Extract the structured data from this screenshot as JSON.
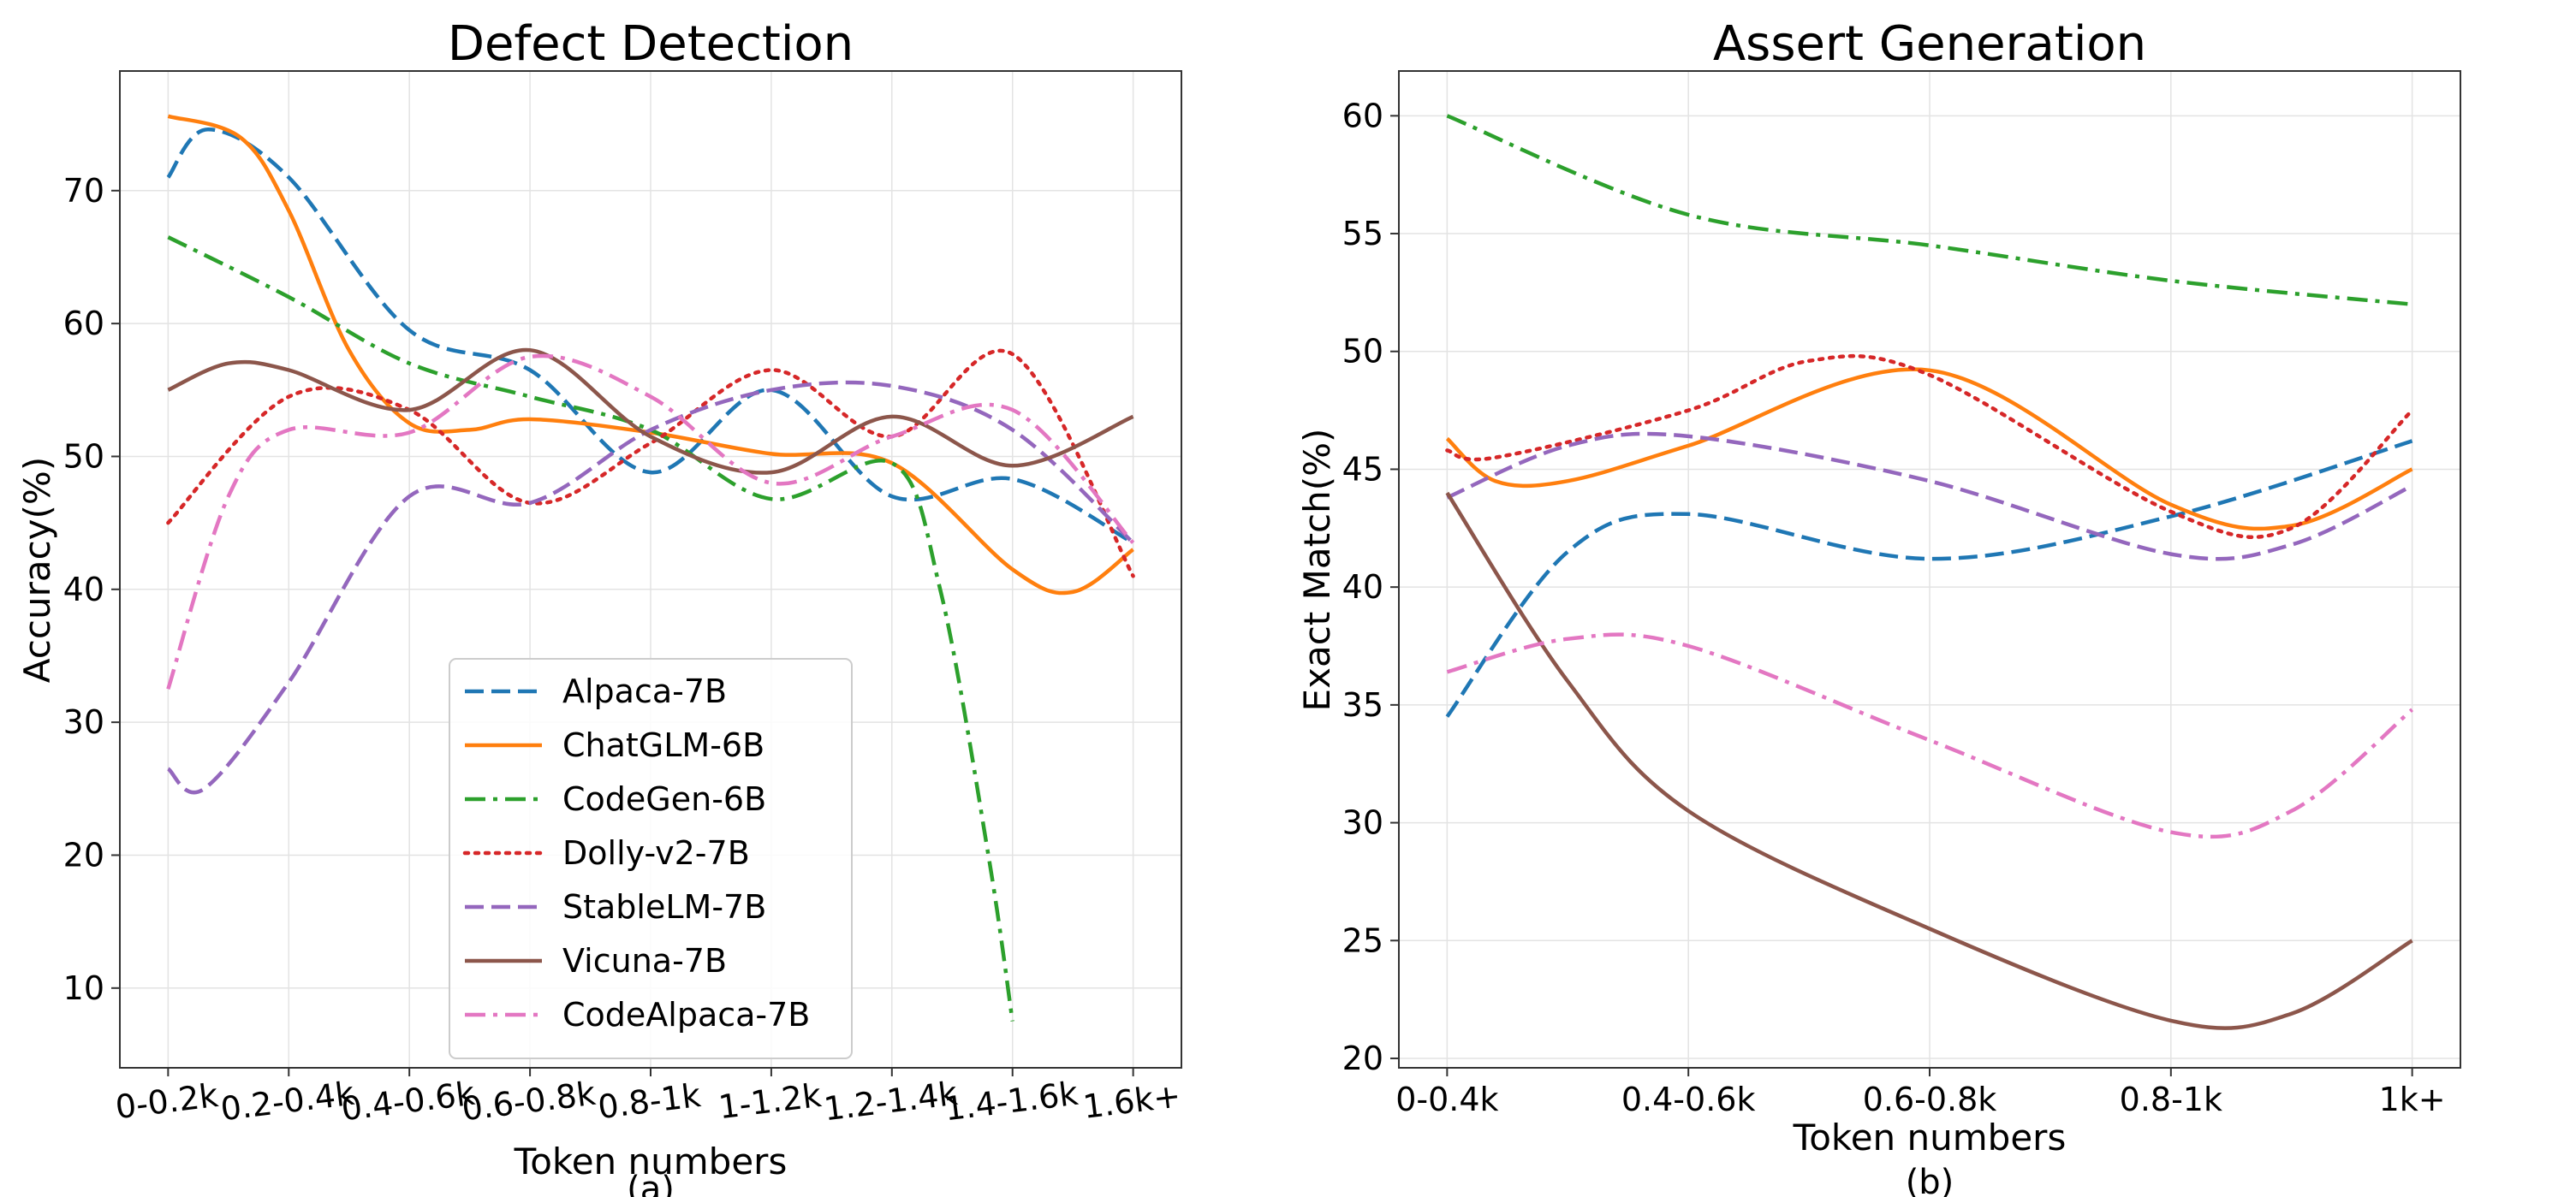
{
  "colors": {
    "Alpaca-7B": "#1f77b4",
    "ChatGLM-6B": "#ff7f0e",
    "CodeGen-6B": "#2ca02c",
    "Dolly-v2-7B": "#d62728",
    "StableLM-7B": "#9467bd",
    "Vicuna-7B": "#8c564b",
    "CodeAlpaca-7B": "#e377c2"
  },
  "legend": {
    "entries": [
      {
        "name": "Alpaca-7B",
        "style": "dashed"
      },
      {
        "name": "ChatGLM-6B",
        "style": "solid"
      },
      {
        "name": "CodeGen-6B",
        "style": "dashdot"
      },
      {
        "name": "Dolly-v2-7B",
        "style": "dotted"
      },
      {
        "name": "StableLM-7B",
        "style": "dashed"
      },
      {
        "name": "Vicuna-7B",
        "style": "solid"
      },
      {
        "name": "CodeAlpaca-7B",
        "style": "dashdot"
      }
    ]
  },
  "chart_data": [
    {
      "type": "line",
      "title": "Defect Detection",
      "xlabel": "Token numbers",
      "ylabel": "Accuracy(%)",
      "sublabel": "(a)",
      "categories": [
        "0-0.2k",
        "0.2-0.4k",
        "0.4-0.6k",
        "0.6-0.8k",
        "0.8-1k",
        "1-1.2k",
        "1.2-1.4k",
        "1.4-1.6k",
        "1.6k+"
      ],
      "xlim": [
        -0.4,
        8.4
      ],
      "ylim": [
        4,
        79
      ],
      "yticks": [
        10,
        20,
        30,
        40,
        50,
        60,
        70
      ],
      "grid": true,
      "legend_position": "lower-center",
      "series": [
        {
          "name": "Alpaca-7B",
          "x": [
            0,
            0.33,
            1,
            2,
            3,
            4,
            5,
            6,
            7,
            8
          ],
          "values": [
            71,
            74.6,
            71,
            59.5,
            56.5,
            48.8,
            55,
            47,
            48.3,
            43.5
          ]
        },
        {
          "name": "ChatGLM-6B",
          "x": [
            0,
            0.6,
            1,
            1.5,
            2,
            2.5,
            3,
            4,
            5,
            6,
            7,
            7.5,
            8
          ],
          "values": [
            75.6,
            74,
            68.5,
            58,
            52.5,
            52,
            52.8,
            51.8,
            50.2,
            49.5,
            41.5,
            39.8,
            43
          ]
        },
        {
          "name": "CodeGen-6B",
          "x": [
            0,
            1,
            2,
            3,
            4,
            5,
            6,
            6.4,
            6.8,
            7
          ],
          "values": [
            66.5,
            62,
            57,
            54.5,
            52,
            46.8,
            49.5,
            40,
            20,
            7.5
          ]
        },
        {
          "name": "Dolly-v2-7B",
          "x": [
            0,
            1,
            2,
            3,
            4,
            5,
            6,
            7,
            8
          ],
          "values": [
            45,
            54.5,
            53.5,
            46.5,
            51,
            56.5,
            51.5,
            57.7,
            41
          ]
        },
        {
          "name": "StableLM-7B",
          "x": [
            0,
            0.3,
            1,
            2,
            3,
            4,
            5,
            6,
            7,
            8
          ],
          "values": [
            26.5,
            25,
            33,
            47,
            46.5,
            52,
            55,
            55.3,
            52,
            43.5
          ]
        },
        {
          "name": "Vicuna-7B",
          "x": [
            0,
            0.5,
            1,
            2,
            3,
            4,
            5,
            6,
            7,
            8
          ],
          "values": [
            55,
            57,
            56.5,
            53.5,
            58,
            51.5,
            48.8,
            53,
            49.3,
            53
          ]
        },
        {
          "name": "CodeAlpaca-7B",
          "x": [
            0,
            0.5,
            1,
            2,
            3,
            4,
            5,
            6,
            7,
            8
          ],
          "values": [
            32.5,
            47,
            52,
            51.8,
            57.5,
            54.5,
            48,
            51.5,
            53.5,
            43.5
          ]
        }
      ]
    },
    {
      "type": "line",
      "title": "Assert Generation",
      "xlabel": "Token numbers",
      "ylabel": "Exact Match(%)",
      "sublabel": "(b)",
      "categories": [
        "0-0.4k",
        "0.4-0.6k",
        "0.6-0.8k",
        "0.8-1k",
        "1k+"
      ],
      "xlim": [
        -0.2,
        4.2
      ],
      "ylim": [
        19.6,
        61.9
      ],
      "yticks": [
        20,
        25,
        30,
        35,
        40,
        45,
        50,
        55,
        60
      ],
      "grid": true,
      "series": [
        {
          "name": "Alpaca-7B",
          "x": [
            0,
            0.5,
            1,
            2,
            3,
            4
          ],
          "values": [
            34.5,
            41.5,
            43.1,
            41.2,
            43,
            46.2
          ]
        },
        {
          "name": "ChatGLM-6B",
          "x": [
            0,
            0.2,
            0.5,
            1,
            2,
            3,
            3.5,
            4
          ],
          "values": [
            46.3,
            44.5,
            44.5,
            46,
            49.2,
            43.5,
            42.6,
            45
          ]
        },
        {
          "name": "CodeGen-6B",
          "x": [
            0,
            1,
            2,
            3,
            4
          ],
          "values": [
            60,
            55.8,
            54.5,
            53,
            52
          ]
        },
        {
          "name": "Dolly-v2-7B",
          "x": [
            0,
            0.2,
            1,
            1.5,
            2,
            3,
            3.5,
            4
          ],
          "values": [
            45.8,
            45.5,
            47.5,
            49.6,
            49,
            43.2,
            42.5,
            47.5
          ]
        },
        {
          "name": "StableLM-7B",
          "x": [
            0,
            0.5,
            1,
            2,
            3,
            3.5,
            4
          ],
          "values": [
            43.8,
            46,
            46.4,
            44.5,
            41.4,
            41.8,
            44.3
          ]
        },
        {
          "name": "Vicuna-7B",
          "x": [
            0,
            0.5,
            1,
            2,
            3,
            3.5,
            4
          ],
          "values": [
            44,
            36,
            30.5,
            25.5,
            21.6,
            21.9,
            25
          ]
        },
        {
          "name": "CodeAlpaca-7B",
          "x": [
            0,
            0.5,
            1,
            2,
            3,
            3.5,
            4
          ],
          "values": [
            36.4,
            37.8,
            37.5,
            33.5,
            29.6,
            30.5,
            34.8
          ]
        }
      ]
    }
  ]
}
